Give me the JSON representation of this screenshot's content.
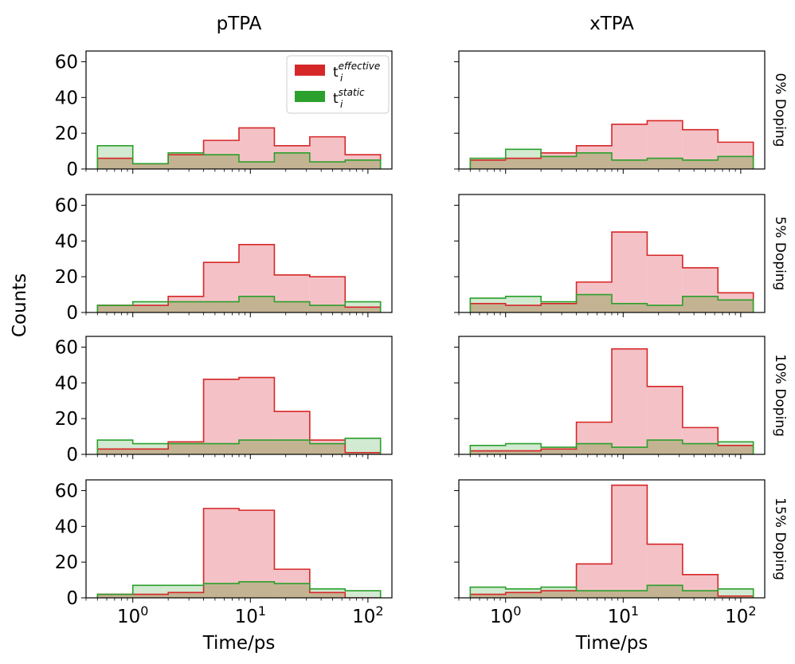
{
  "chart_data": {
    "type": "histogram-grid",
    "columns": [
      "pTPA",
      "xTPA"
    ],
    "rows": [
      "0% Doping",
      "5% Doping",
      "10% Doping",
      "15% Doping"
    ],
    "xlabel": "Time/ps",
    "ylabel": "Counts",
    "xscale": "log",
    "xlim": [
      0.4,
      160
    ],
    "ylim": [
      0,
      66
    ],
    "yticks": [
      0,
      20,
      40,
      60
    ],
    "xticks": [
      1,
      10,
      100
    ],
    "xtick_labels": [
      {
        "base": "10",
        "exp": "0"
      },
      {
        "base": "10",
        "exp": "1"
      },
      {
        "base": "10",
        "exp": "2"
      }
    ],
    "bin_edges": [
      0.5,
      1,
      2,
      4,
      8,
      16,
      32,
      64,
      128
    ],
    "legend": {
      "placement": "top-right of first panel",
      "entries": [
        {
          "base": "t",
          "sub": "i",
          "sup": "effective",
          "color": "#d62728",
          "series": "effective"
        },
        {
          "base": "t",
          "sub": "i",
          "sup": "static",
          "color": "#2ca02c",
          "series": "static"
        }
      ]
    },
    "colors": {
      "effective_fill": "#f4c2c6",
      "effective_edge": "#d62728",
      "static_fill": "#2ca02c",
      "static_edge": "#2ca02c",
      "overlap_fill": "#c3b393"
    },
    "panels": [
      {
        "column": "pTPA",
        "row": "0% Doping",
        "effective": [
          6,
          3,
          8,
          16,
          23,
          13,
          18,
          8
        ],
        "static": [
          13,
          3,
          9,
          8,
          4,
          9,
          4,
          5
        ]
      },
      {
        "column": "xTPA",
        "row": "0% Doping",
        "effective": [
          5,
          6,
          9,
          13,
          25,
          27,
          22,
          15
        ],
        "static": [
          6,
          11,
          7,
          9,
          5,
          6,
          5,
          7
        ]
      },
      {
        "column": "pTPA",
        "row": "5% Doping",
        "effective": [
          4,
          4,
          9,
          28,
          38,
          21,
          20,
          3
        ],
        "static": [
          4,
          6,
          6,
          6,
          9,
          6,
          4,
          6
        ]
      },
      {
        "column": "xTPA",
        "row": "5% Doping",
        "effective": [
          5,
          4,
          5,
          17,
          45,
          32,
          25,
          11
        ],
        "static": [
          8,
          9,
          6,
          10,
          5,
          4,
          9,
          7
        ]
      },
      {
        "column": "pTPA",
        "row": "10% Doping",
        "effective": [
          3,
          3,
          7,
          42,
          43,
          24,
          8,
          1
        ],
        "static": [
          8,
          6,
          6,
          6,
          8,
          8,
          6,
          9
        ]
      },
      {
        "column": "xTPA",
        "row": "10% Doping",
        "effective": [
          2,
          2,
          3,
          18,
          59,
          38,
          15,
          5
        ],
        "static": [
          5,
          6,
          4,
          6,
          4,
          8,
          6,
          7
        ]
      },
      {
        "column": "pTPA",
        "row": "15% Doping",
        "effective": [
          2,
          2,
          3,
          50,
          49,
          16,
          3,
          0
        ],
        "static": [
          2,
          7,
          7,
          8,
          9,
          8,
          5,
          4
        ]
      },
      {
        "column": "xTPA",
        "row": "15% Doping",
        "effective": [
          2,
          3,
          4,
          19,
          63,
          30,
          13,
          1
        ],
        "static": [
          6,
          5,
          6,
          4,
          4,
          7,
          4,
          5
        ]
      }
    ]
  }
}
